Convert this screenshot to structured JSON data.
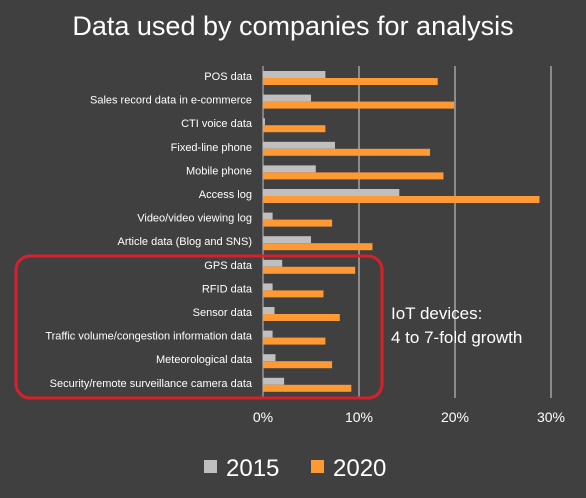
{
  "chart_data": {
    "type": "bar",
    "orientation": "horizontal",
    "title": "Data used by companies for analysis",
    "xlabel": "",
    "ylabel": "",
    "xlim": [
      0,
      30
    ],
    "x_tick_labels": [
      "0%",
      "10%",
      "20%",
      "30%"
    ],
    "x_tick_values": [
      0,
      10,
      20,
      30
    ],
    "grid": "vertical",
    "legend_position": "bottom",
    "colors": {
      "background": "#404040",
      "series_2015": "#bfbfbf",
      "series_2020": "#ff9933",
      "highlight_box": "#d9202a"
    },
    "categories": [
      "POS data",
      "Sales record data in e-commerce",
      "CTI voice data",
      "Fixed-line phone",
      "Mobile phone",
      "Access log",
      "Video/video viewing log",
      "Article data (Blog and SNS)",
      "GPS data",
      "RFID data",
      "Sensor data",
      "Traffic volume/congestion information data",
      "Meteorological data",
      "Security/remote surveillance camera data"
    ],
    "series": [
      {
        "name": "2015",
        "values": [
          6.5,
          5.0,
          0.2,
          7.5,
          5.5,
          14.2,
          1.0,
          5.0,
          2.0,
          1.0,
          1.2,
          1.0,
          1.3,
          2.2
        ]
      },
      {
        "name": "2020",
        "values": [
          18.2,
          19.9,
          6.5,
          17.4,
          18.8,
          28.8,
          7.2,
          11.4,
          9.6,
          6.3,
          8.0,
          6.5,
          7.2,
          9.2
        ]
      }
    ],
    "annotation": {
      "lines": [
        "IoT devices:",
        "4 to 7-fold growth"
      ]
    }
  }
}
